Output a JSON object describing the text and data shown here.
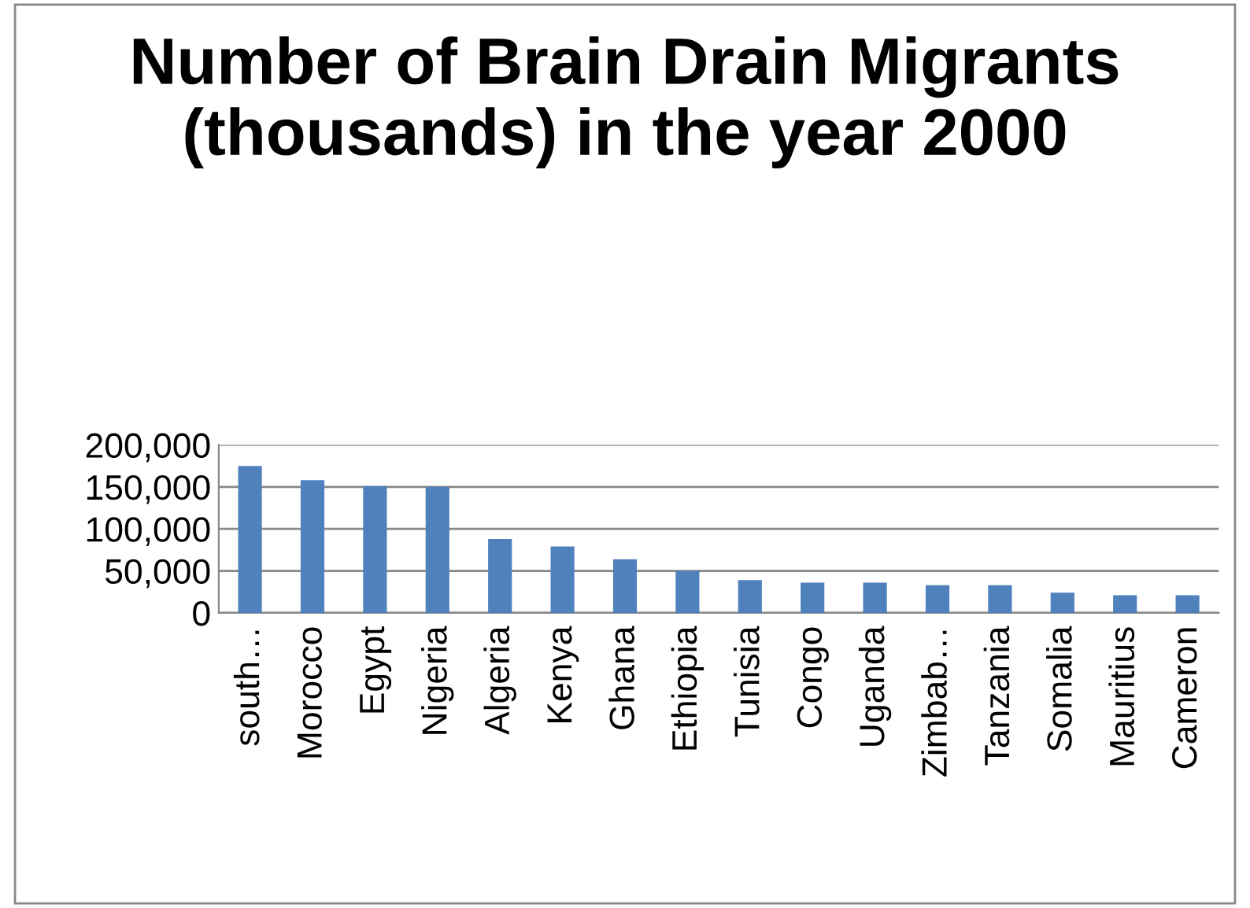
{
  "chart_data": {
    "type": "bar",
    "title": "Number of Brain Drain Migrants (thousands) in the year 2000",
    "categories": [
      "south…",
      "Morocco",
      "Egypt",
      "Nigeria",
      "Algeria",
      "Kenya",
      "Ghana",
      "Ethiopia",
      "Tunisia",
      "Congo",
      "Uganda",
      "Zimbab…",
      "Tanzania",
      "Somalia",
      "Mauritius",
      "Cameron"
    ],
    "values": [
      175000,
      158000,
      151000,
      150000,
      88000,
      79000,
      64000,
      50000,
      39000,
      36000,
      36000,
      33000,
      33000,
      24000,
      21000,
      21000
    ],
    "color": "#4f81bd",
    "ylim": [
      0,
      200000
    ],
    "yticks": [
      {
        "value": 0,
        "label": "0"
      },
      {
        "value": 50000,
        "label": "50,000"
      },
      {
        "value": 100000,
        "label": "100,000"
      },
      {
        "value": 150000,
        "label": "150,000"
      },
      {
        "value": 200000,
        "label": "200,000"
      }
    ],
    "grid": "y"
  }
}
